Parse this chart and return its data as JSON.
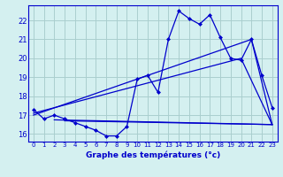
{
  "title": "Graphe des températures (°c)",
  "bg_color": "#d4f0f0",
  "grid_color": "#aacece",
  "line_color": "#0000cc",
  "ylim": [
    15.6,
    22.8
  ],
  "xlim": [
    -0.5,
    23.5
  ],
  "yticks": [
    16,
    17,
    18,
    19,
    20,
    21,
    22
  ],
  "xticks": [
    0,
    1,
    2,
    3,
    4,
    5,
    6,
    7,
    8,
    9,
    10,
    11,
    12,
    13,
    14,
    15,
    16,
    17,
    18,
    19,
    20,
    21,
    22,
    23
  ],
  "line1_x": [
    0,
    1,
    2,
    3,
    4,
    5,
    6,
    7,
    8,
    9,
    10,
    11,
    12,
    13,
    14,
    15,
    16,
    17,
    18,
    19,
    20,
    21,
    22,
    23
  ],
  "line1_y": [
    17.3,
    16.8,
    17.0,
    16.8,
    16.6,
    16.4,
    16.2,
    15.9,
    15.9,
    16.4,
    18.9,
    19.1,
    18.2,
    21.0,
    22.5,
    22.1,
    21.8,
    22.3,
    21.1,
    20.0,
    19.9,
    21.0,
    19.1,
    17.4
  ],
  "line2_x": [
    0,
    20,
    23
  ],
  "line2_y": [
    17.1,
    20.0,
    16.5
  ],
  "line3_x": [
    0,
    21,
    23
  ],
  "line3_y": [
    17.0,
    21.0,
    16.5
  ],
  "line4_x": [
    2,
    23
  ],
  "line4_y": [
    16.75,
    16.5
  ],
  "line5_x": [
    3,
    23
  ],
  "line5_y": [
    16.7,
    16.5
  ]
}
